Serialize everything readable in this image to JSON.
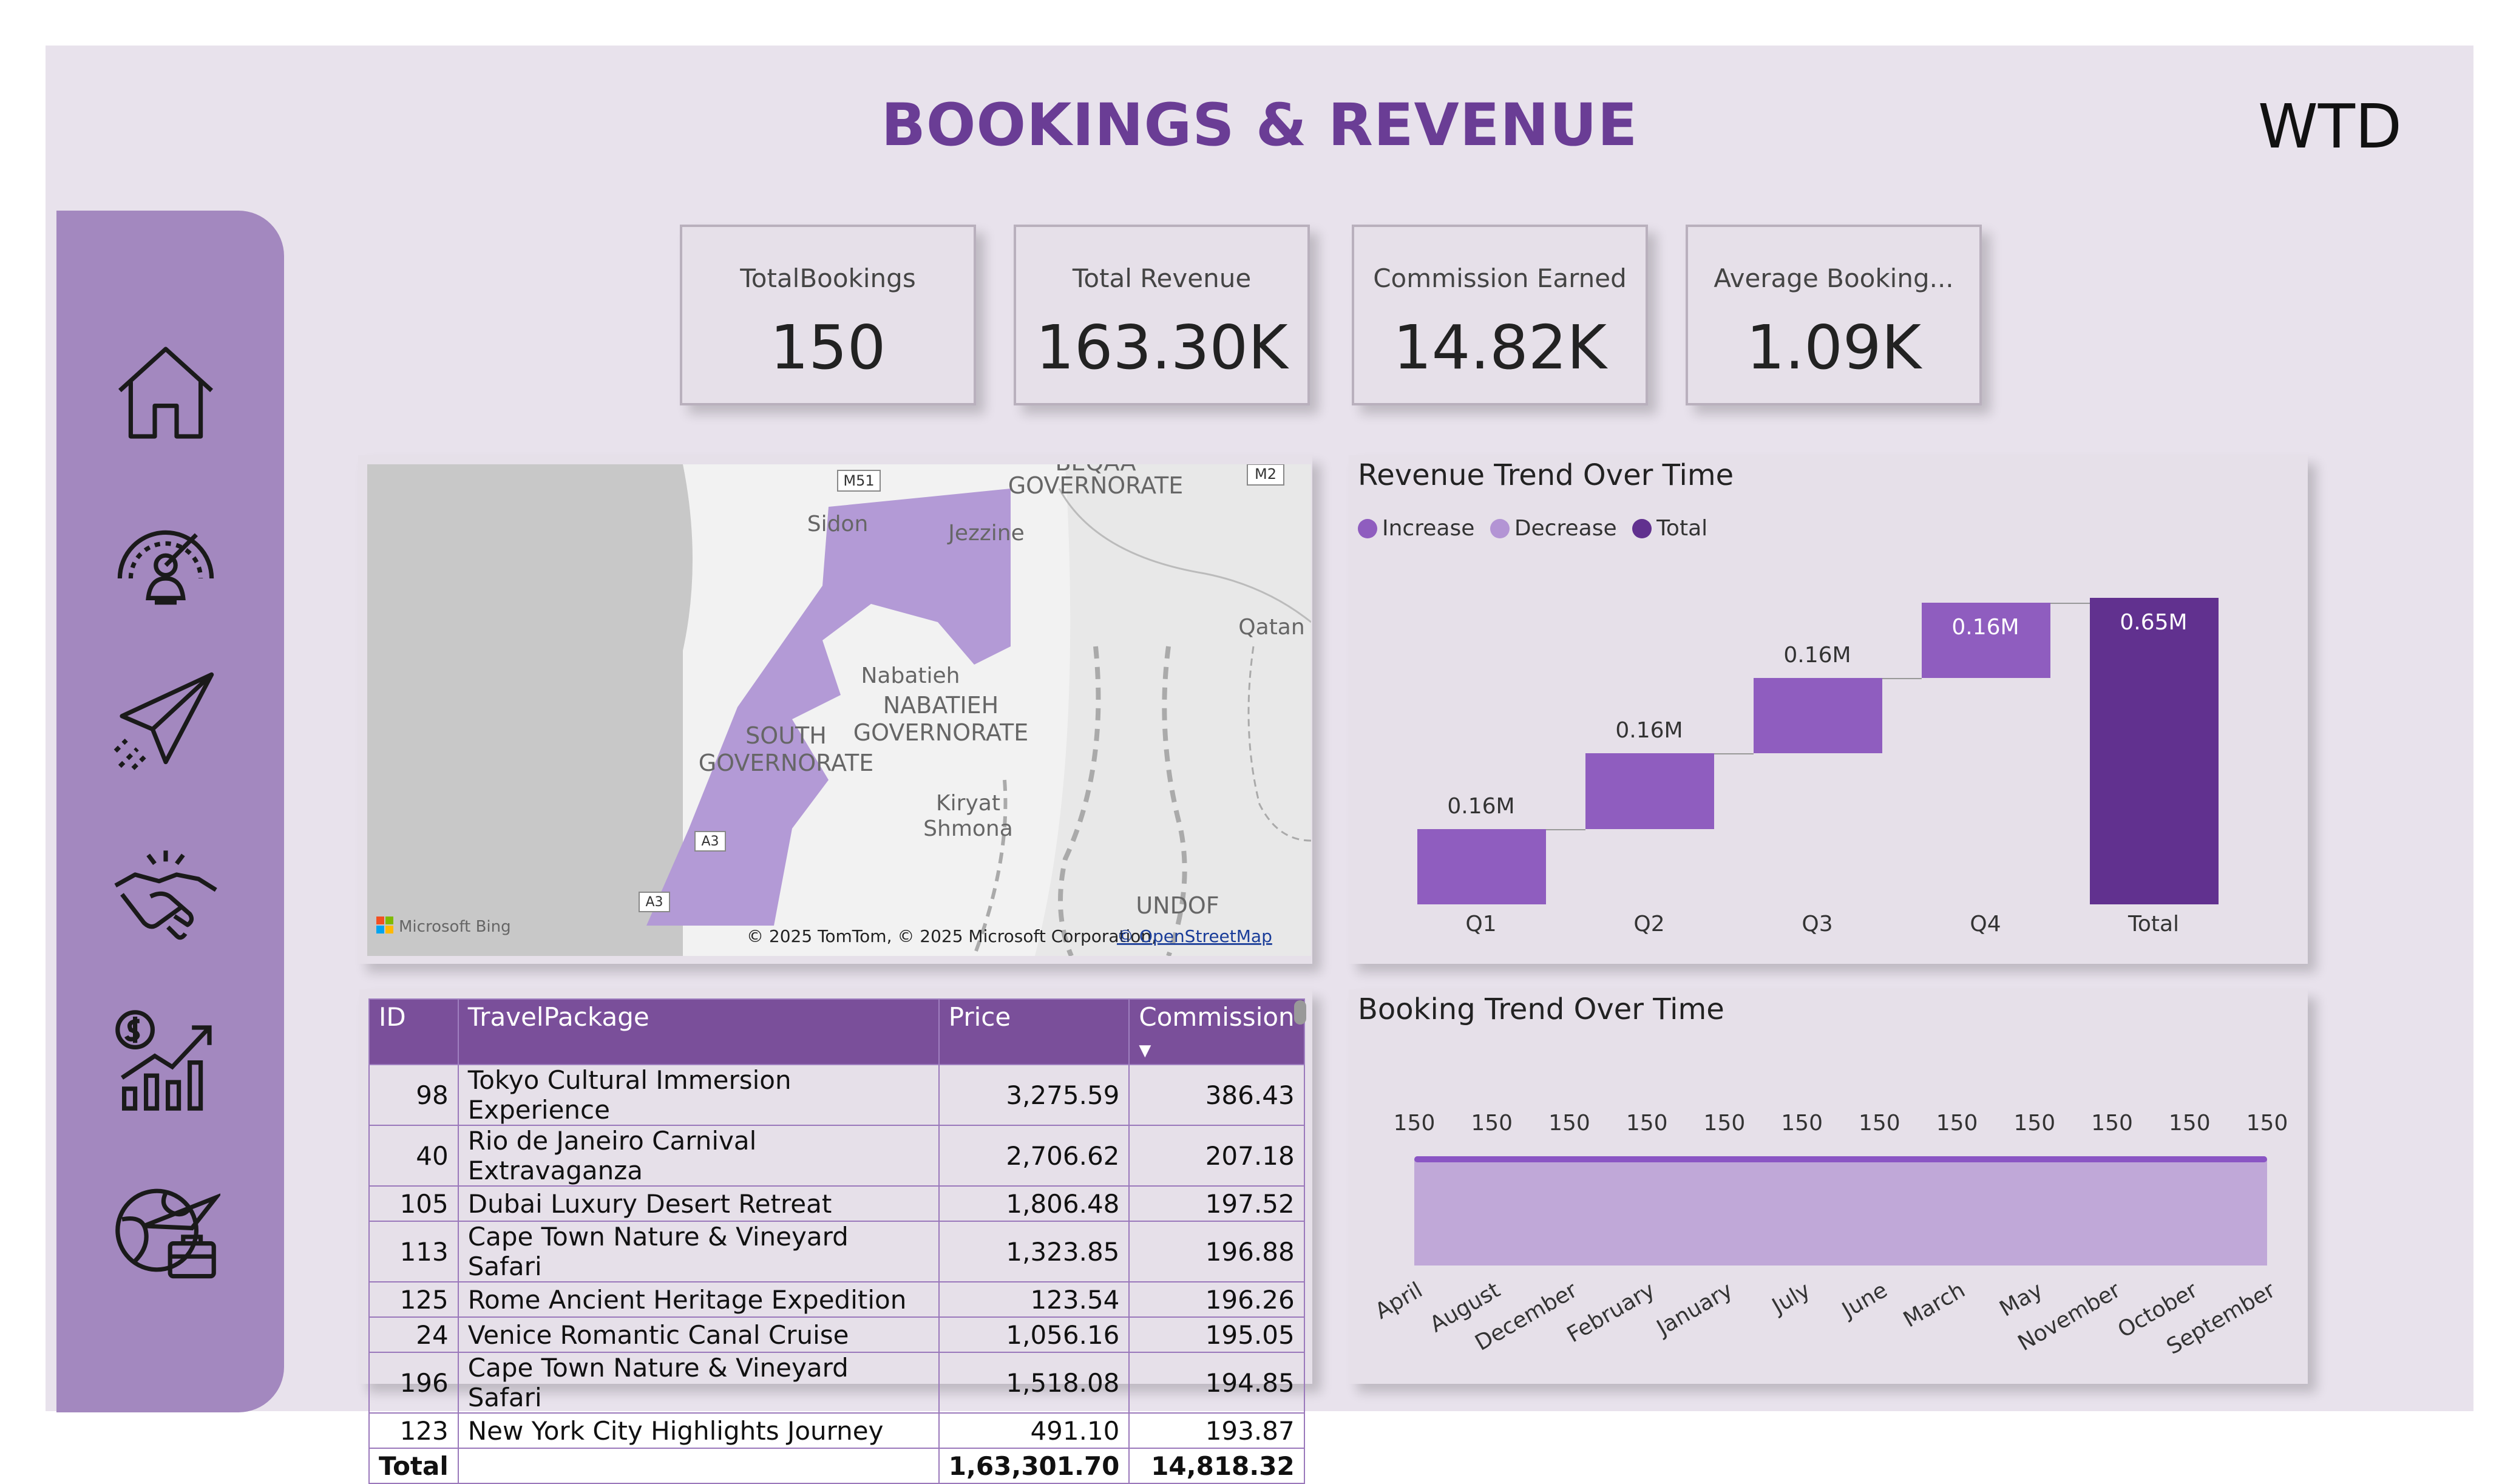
{
  "page": {
    "title": "BOOKINGS & REVENUE",
    "period": "WTD"
  },
  "nav": [
    {
      "name": "home-icon"
    },
    {
      "name": "dashboard-gauge-icon"
    },
    {
      "name": "paper-plane-icon"
    },
    {
      "name": "handshake-icon"
    },
    {
      "name": "revenue-growth-icon"
    },
    {
      "name": "global-travel-icon"
    }
  ],
  "kpis": [
    {
      "label": "TotalBookings",
      "value": "150"
    },
    {
      "label": "Total Revenue",
      "value": "163.30K"
    },
    {
      "label": "Commission Earned",
      "value": "14.82K"
    },
    {
      "label": "Average Booking...",
      "value": "1.09K"
    }
  ],
  "map": {
    "places": [
      "BEQAA",
      "GOVERNORATE",
      "Sidon",
      "Jezzine",
      "Qatan",
      "Nabatieh",
      "NABATIEH",
      "GOVERNORATE",
      "SOUTH",
      "GOVERNORATE",
      "Kiryat",
      "Shmona",
      "UNDOF"
    ],
    "roads": [
      "M51",
      "M2",
      "A3",
      "A3"
    ],
    "attribution": "© 2025 TomTom, © 2025 Microsoft Corporation,",
    "attribution_link": "© OpenStreetMap",
    "provider": "Microsoft Bing"
  },
  "revenue_chart": {
    "title": "Revenue Trend Over Time",
    "legend": [
      "Increase",
      "Decrease",
      "Total"
    ]
  },
  "booking_chart": {
    "title": "Booking Trend Over Time"
  },
  "colors": {
    "increase": "#8f5dbf",
    "decrease": "#b394d4",
    "total": "#61318f",
    "area": "#c0a8d8",
    "line": "#8a55c4"
  },
  "table": {
    "headers": [
      "ID",
      "TravelPackage",
      "Price",
      "Commission"
    ],
    "rows": [
      [
        "98",
        "Tokyo Cultural Immersion Experience",
        "3,275.59",
        "386.43"
      ],
      [
        "40",
        "Rio de Janeiro Carnival Extravaganza",
        "2,706.62",
        "207.18"
      ],
      [
        "105",
        "Dubai Luxury Desert Retreat",
        "1,806.48",
        "197.52"
      ],
      [
        "113",
        "Cape Town Nature & Vineyard Safari",
        "1,323.85",
        "196.88"
      ],
      [
        "125",
        "Rome Ancient Heritage Expedition",
        "123.54",
        "196.26"
      ],
      [
        "24",
        "Venice Romantic Canal Cruise",
        "1,056.16",
        "195.05"
      ],
      [
        "196",
        "Cape Town Nature & Vineyard Safari",
        "1,518.08",
        "194.85"
      ],
      [
        "123",
        "New York City Highlights Journey",
        "491.10",
        "193.87"
      ]
    ],
    "total": [
      "Total",
      "",
      "1,63,301.70",
      "14,818.32"
    ]
  },
  "chart_data": [
    {
      "type": "bar",
      "title": "Revenue Trend Over Time",
      "categories": [
        "Q1",
        "Q2",
        "Q3",
        "Q4",
        "Total"
      ],
      "values": [
        0.16,
        0.16,
        0.16,
        0.16,
        0.65
      ],
      "labels": [
        "0.16M",
        "0.16M",
        "0.16M",
        "0.16M",
        "0.65M"
      ],
      "kind": [
        "increase",
        "increase",
        "increase",
        "increase",
        "total"
      ],
      "legend": [
        "Increase",
        "Decrease",
        "Total"
      ],
      "legend_position": "top-left",
      "ylim": [
        0,
        0.65
      ]
    },
    {
      "type": "area",
      "title": "Booking Trend Over Time",
      "categories": [
        "April",
        "August",
        "December",
        "February",
        "January",
        "July",
        "June",
        "March",
        "May",
        "November",
        "October",
        "September"
      ],
      "values": [
        150,
        150,
        150,
        150,
        150,
        150,
        150,
        150,
        150,
        150,
        150,
        150
      ]
    }
  ]
}
